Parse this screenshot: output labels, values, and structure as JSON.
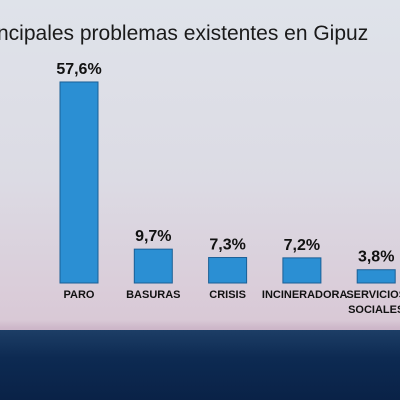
{
  "chart_data": {
    "type": "bar",
    "title": "ncipales problemas existentes en Gipuz",
    "categories": [
      "PARO",
      "BASURAS",
      "CRISIS",
      "INCINERADORA",
      "SERVICIOS SOCIALES"
    ],
    "values": [
      57.6,
      9.7,
      7.3,
      7.2,
      3.8
    ],
    "value_labels": [
      "57,6%",
      "9,7%",
      "7,3%",
      "7,2%",
      "3,8%"
    ],
    "color": "#2b8fd3"
  }
}
